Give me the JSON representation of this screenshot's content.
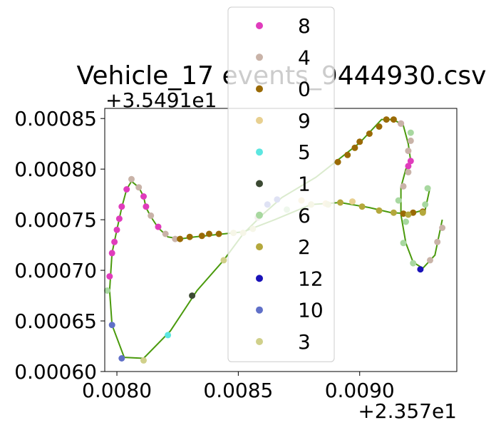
{
  "chart_data": {
    "type": "scatter",
    "title": "Vehicle_17 events_9444930.csv",
    "xlabel": "",
    "ylabel": "",
    "x_offset_label": "+2.357e1",
    "y_offset_label": "+3.5491e1",
    "xlim": [
      0.00795,
      0.0094
    ],
    "ylim": [
      0.0006,
      0.00086
    ],
    "xticks": [
      0.008,
      0.0085,
      0.009
    ],
    "xtick_labels": [
      "0.0080",
      "0.0085",
      "0.0090"
    ],
    "yticks": [
      0.0006,
      0.00065,
      0.0007,
      0.00075,
      0.0008,
      0.00085
    ],
    "ytick_labels": [
      "0.00060",
      "0.00065",
      "0.00070",
      "0.00075",
      "0.00080",
      "0.00085"
    ],
    "grid": false,
    "legend_position": "upper-center",
    "line": {
      "color": "#4a9a0c",
      "points": [
        [
          0.00934,
          0.00075
        ],
        [
          0.00931,
          0.000715
        ],
        [
          0.00926,
          0.000702
        ],
        [
          0.00922,
          0.000708
        ],
        [
          0.00919,
          0.000727
        ],
        [
          0.00917,
          0.000755
        ],
        [
          0.00917,
          0.000782
        ],
        [
          0.00919,
          0.0008
        ],
        [
          0.00921,
          0.000808
        ],
        [
          0.0092,
          0.000825
        ],
        [
          0.00918,
          0.000843
        ],
        [
          0.00914,
          0.000849
        ],
        [
          0.00909,
          0.000849
        ],
        [
          0.009,
          0.000826
        ],
        [
          0.00882,
          0.000792
        ],
        [
          0.00868,
          0.000772
        ],
        [
          0.0086,
          0.000755
        ],
        [
          0.00852,
          0.000736
        ],
        [
          0.00844,
          0.00071
        ],
        [
          0.00833,
          0.00068
        ],
        [
          0.00822,
          0.00064
        ],
        [
          0.00811,
          0.000613
        ],
        [
          0.00803,
          0.000614
        ],
        [
          0.00798,
          0.000646
        ],
        [
          0.00797,
          0.00068
        ],
        [
          0.00798,
          0.000717
        ],
        [
          0.008,
          0.00074
        ],
        [
          0.00802,
          0.000762
        ],
        [
          0.00804,
          0.00078
        ],
        [
          0.00806,
          0.000788
        ],
        [
          0.00809,
          0.000782
        ],
        [
          0.00811,
          0.000773
        ],
        [
          0.00812,
          0.000762
        ],
        [
          0.00814,
          0.000753
        ],
        [
          0.00817,
          0.000742
        ],
        [
          0.00821,
          0.000733
        ],
        [
          0.00826,
          0.000731
        ],
        [
          0.00832,
          0.000733
        ],
        [
          0.0084,
          0.000735
        ],
        [
          0.00852,
          0.000738
        ],
        [
          0.00865,
          0.00075
        ],
        [
          0.0088,
          0.000765
        ],
        [
          0.00892,
          0.000767
        ],
        [
          0.00904,
          0.000762
        ],
        [
          0.00913,
          0.000757
        ],
        [
          0.00921,
          0.000756
        ],
        [
          0.00927,
          0.00076
        ],
        [
          0.00929,
          0.000782
        ]
      ]
    },
    "series": [
      {
        "name": "8",
        "color": "#e03cbc",
        "points": [
          [
            0.00797,
            0.000694
          ],
          [
            0.00798,
            0.000717
          ],
          [
            0.00799,
            0.000728
          ],
          [
            0.008,
            0.00074
          ],
          [
            0.00801,
            0.000751
          ],
          [
            0.00802,
            0.000763
          ],
          [
            0.00804,
            0.00078
          ],
          [
            0.00811,
            0.000773
          ],
          [
            0.00812,
            0.000763
          ],
          [
            0.00817,
            0.000743
          ],
          [
            0.0092,
            0.000803
          ],
          [
            0.00921,
            0.000808
          ],
          [
            0.00917,
            0.000845
          ]
        ]
      },
      {
        "name": "4",
        "color": "#c9b3a8",
        "points": [
          [
            0.00806,
            0.00079
          ],
          [
            0.00809,
            0.000782
          ],
          [
            0.00814,
            0.000754
          ],
          [
            0.0082,
            0.000736
          ],
          [
            0.00824,
            0.000731
          ],
          [
            0.00918,
            0.000783
          ],
          [
            0.0092,
            0.000797
          ],
          [
            0.0092,
            0.000818
          ],
          [
            0.00921,
            0.000828
          ],
          [
            0.00917,
            0.000845
          ],
          [
            0.00929,
            0.00071
          ],
          [
            0.00932,
            0.000728
          ],
          [
            0.00934,
            0.000742
          ],
          [
            0.00858,
            0.000752
          ]
        ]
      },
      {
        "name": "0",
        "color": "#9a6a05",
        "points": [
          [
            0.00826,
            0.000731
          ],
          [
            0.0083,
            0.000733
          ],
          [
            0.00835,
            0.000734
          ],
          [
            0.00838,
            0.000736
          ],
          [
            0.00842,
            0.000736
          ],
          [
            0.00891,
            0.000807
          ],
          [
            0.00895,
            0.000814
          ],
          [
            0.00898,
            0.000821
          ],
          [
            0.009,
            0.000827
          ],
          [
            0.00904,
            0.000835
          ],
          [
            0.00908,
            0.000842
          ],
          [
            0.00911,
            0.000849
          ],
          [
            0.00914,
            0.000849
          ],
          [
            0.00918,
            0.000756
          ],
          [
            0.00922,
            0.000757
          ],
          [
            0.00926,
            0.000758
          ]
        ]
      },
      {
        "name": "9",
        "color": "#e8d090",
        "points": [
          [
            0.0088,
            0.000765
          ],
          [
            0.00886,
            0.000766
          ],
          [
            0.00897,
            0.000768
          ],
          [
            0.00876,
            0.000769
          ]
        ]
      },
      {
        "name": "5",
        "color": "#5ce6e0",
        "points": [
          [
            0.00821,
            0.000636
          ]
        ]
      },
      {
        "name": "1",
        "color": "#3c4a33",
        "points": [
          [
            0.00831,
            0.000675
          ]
        ]
      },
      {
        "name": "6",
        "color": "#a8d8a0",
        "points": [
          [
            0.00796,
            0.00068
          ],
          [
            0.00916,
            0.000769
          ],
          [
            0.00919,
            0.000748
          ],
          [
            0.00918,
            0.000727
          ],
          [
            0.00922,
            0.000707
          ],
          [
            0.00921,
            0.000836
          ],
          [
            0.00928,
            0.000781
          ],
          [
            0.00927,
            0.000765
          ],
          [
            0.0087,
            0.00076
          ]
        ]
      },
      {
        "name": "2",
        "color": "#b4a83c",
        "points": [
          [
            0.00892,
            0.000767
          ],
          [
            0.00901,
            0.000763
          ],
          [
            0.00908,
            0.000759
          ],
          [
            0.00914,
            0.000757
          ],
          [
            0.0092,
            0.000755
          ],
          [
            0.00926,
            0.000757
          ]
        ]
      },
      {
        "name": "12",
        "color": "#1a12b8",
        "points": [
          [
            0.00925,
            0.000701
          ]
        ]
      },
      {
        "name": "10",
        "color": "#6070c8",
        "points": [
          [
            0.00798,
            0.000646
          ],
          [
            0.00802,
            0.000613
          ],
          [
            0.00862,
            0.000765
          ],
          [
            0.00866,
            0.00077
          ]
        ]
      },
      {
        "name": "3",
        "color": "#d0d08a",
        "points": [
          [
            0.00811,
            0.000611
          ],
          [
            0.00844,
            0.00071
          ],
          [
            0.00848,
            0.000737
          ],
          [
            0.00852,
            0.000737
          ],
          [
            0.00856,
            0.000741
          ],
          [
            0.0088,
            0.000765
          ],
          [
            0.00887,
            0.000765
          ]
        ]
      }
    ]
  }
}
